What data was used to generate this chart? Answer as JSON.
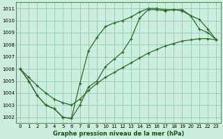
{
  "title": "Graphe pression niveau de la mer (hPa)",
  "bg_color": "#cceedd",
  "grid_color": "#99ccbb",
  "line_color": "#2d6b2d",
  "xlim": [
    -0.5,
    23.5
  ],
  "ylim": [
    1001.5,
    1011.5
  ],
  "xticks": [
    0,
    1,
    2,
    3,
    4,
    5,
    6,
    7,
    8,
    9,
    10,
    11,
    12,
    13,
    14,
    15,
    16,
    17,
    18,
    19,
    20,
    21,
    22,
    23
  ],
  "yticks": [
    1002,
    1003,
    1004,
    1005,
    1006,
    1007,
    1008,
    1009,
    1010,
    1011
  ],
  "line1_x": [
    0,
    1,
    2,
    3,
    4,
    5,
    6,
    7,
    8,
    9,
    10,
    11,
    12,
    13,
    14,
    15,
    16,
    17,
    18,
    19,
    20,
    21,
    22,
    23
  ],
  "line1_y": [
    1006.0,
    1005.0,
    1003.8,
    1003.0,
    1002.7,
    1002.0,
    1001.9,
    1003.0,
    1004.5,
    1005.0,
    1006.2,
    1006.8,
    1007.4,
    1008.5,
    1010.2,
    1010.9,
    1010.9,
    1010.8,
    1010.9,
    1010.9,
    1010.4,
    1010.1,
    1009.3,
    1008.4
  ],
  "line2_x": [
    0,
    1,
    2,
    3,
    4,
    5,
    6,
    7,
    8,
    9,
    10,
    11,
    12,
    13,
    14,
    15,
    16,
    17,
    18,
    19,
    20,
    21,
    22,
    23
  ],
  "line2_y": [
    1006.0,
    1005.3,
    1004.6,
    1004.0,
    1003.5,
    1003.2,
    1003.0,
    1003.5,
    1004.2,
    1004.8,
    1005.3,
    1005.7,
    1006.1,
    1006.5,
    1006.9,
    1007.3,
    1007.6,
    1007.9,
    1008.1,
    1008.3,
    1008.4,
    1008.5,
    1008.5,
    1008.4
  ],
  "line3_x": [
    0,
    1,
    2,
    3,
    4,
    5,
    6,
    7,
    8,
    9,
    10,
    11,
    12,
    13,
    14,
    15,
    16,
    17,
    18,
    19,
    20,
    21,
    22,
    23
  ],
  "line3_y": [
    1006.0,
    1005.0,
    1003.8,
    1003.0,
    1002.7,
    1002.0,
    1001.9,
    1004.8,
    1007.5,
    1008.6,
    1009.5,
    1009.8,
    1010.0,
    1010.3,
    1010.7,
    1011.0,
    1011.0,
    1010.9,
    1010.9,
    1010.8,
    1010.4,
    1009.3,
    1009.0,
    1008.4
  ]
}
